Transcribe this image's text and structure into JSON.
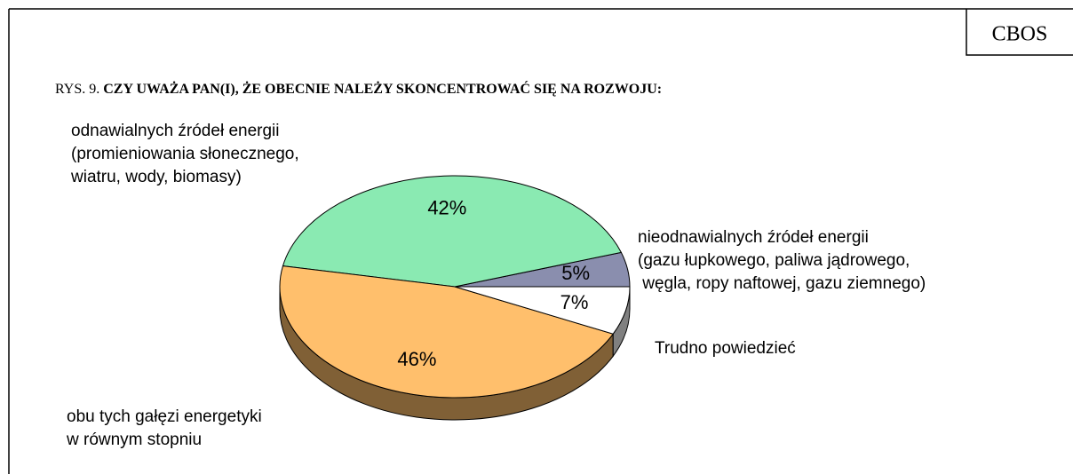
{
  "chart_data": {
    "type": "pie3d",
    "source": "CBOS",
    "figure_label": "RYS. 9.",
    "title": "CZY UWAŻA PAN(I), ŻE OBECNIE NALEŻY SKONCENTROWAĆ SIĘ NA ROZWOJU:",
    "categories": [
      [
        "nieodnawialnych źródeł energii",
        "(gazu łupkowego, paliwa jądrowego,",
        " węgla, ropy naftowej, gazu ziemnego)"
      ],
      [
        "odnawialnych źródeł energii",
        "(promieniowania słonecznego,",
        "wiatru, wody, biomasy)"
      ],
      [
        "obu tych gałęzi energetyki",
        "w równym stopniu"
      ],
      [
        "Trudno powiedzieć"
      ]
    ],
    "values": [
      5,
      42,
      46,
      7
    ],
    "value_labels": [
      "5%",
      "42%",
      "46%",
      "7%"
    ],
    "colors": [
      "#8a8eae",
      "#8aeab2",
      "#ffbf6c",
      "#ffffff"
    ]
  }
}
